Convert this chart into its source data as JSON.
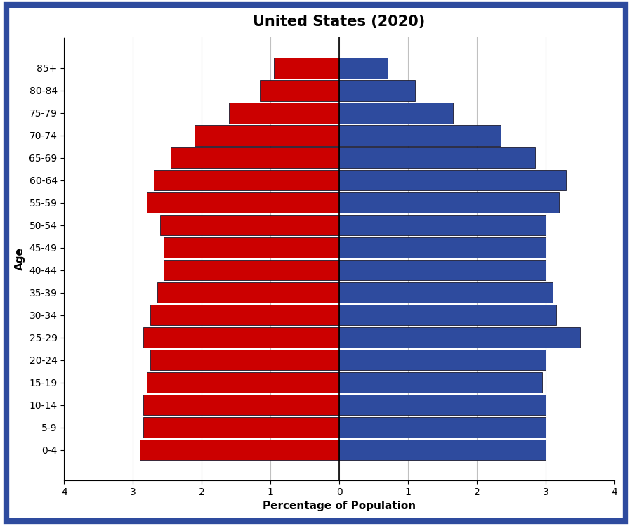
{
  "title": "United States (2020)",
  "xlabel": "Percentage of Population",
  "ylabel": "Age",
  "age_groups": [
    "0-4",
    "5-9",
    "10-14",
    "15-19",
    "20-24",
    "25-29",
    "30-34",
    "35-39",
    "40-44",
    "45-49",
    "50-54",
    "55-59",
    "60-64",
    "65-69",
    "70-74",
    "75-79",
    "80-84",
    "85+"
  ],
  "female_values": [
    2.9,
    2.85,
    2.85,
    2.8,
    2.75,
    2.85,
    2.75,
    2.65,
    2.55,
    2.55,
    2.6,
    2.8,
    2.7,
    2.45,
    2.1,
    1.6,
    1.15,
    0.95
  ],
  "male_values": [
    3.0,
    3.0,
    3.0,
    2.95,
    3.0,
    3.5,
    3.15,
    3.1,
    3.0,
    3.0,
    3.0,
    3.2,
    3.3,
    2.85,
    2.35,
    1.65,
    1.1,
    0.7
  ],
  "female_color": "#CC0000",
  "male_color": "#2E4B9E",
  "bar_edge_color": "#1a1a2e",
  "background_color": "#ffffff",
  "border_color": "#2E4B9E",
  "border_width": 6,
  "xlim": 4,
  "title_fontsize": 15,
  "label_fontsize": 11,
  "tick_fontsize": 10,
  "bar_height": 0.92
}
